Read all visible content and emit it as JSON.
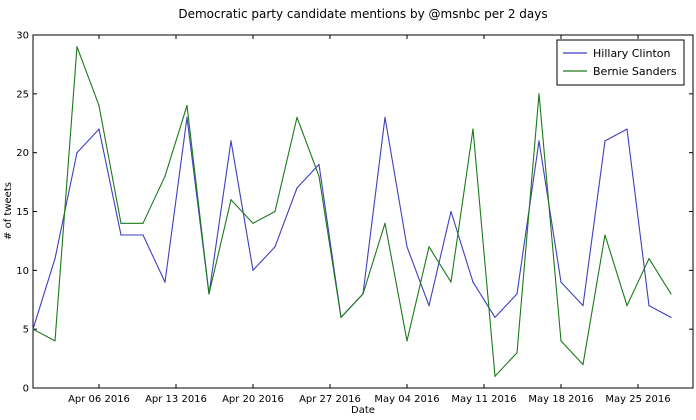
{
  "chart_data": {
    "type": "line",
    "title": "Democratic party candidate mentions by @msnbc per 2 days",
    "xlabel": "Date",
    "ylabel": "# of tweets",
    "ylim": [
      0,
      30
    ],
    "yticks": [
      0,
      5,
      10,
      15,
      20,
      25,
      30
    ],
    "xlim": [
      "2016-03-31",
      "2016-05-30"
    ],
    "xticks": [
      {
        "date": "2016-04-06",
        "label": "Apr 06 2016"
      },
      {
        "date": "2016-04-13",
        "label": "Apr 13 2016"
      },
      {
        "date": "2016-04-20",
        "label": "Apr 20 2016"
      },
      {
        "date": "2016-04-27",
        "label": "Apr 27 2016"
      },
      {
        "date": "2016-05-04",
        "label": "May 04 2016"
      },
      {
        "date": "2016-05-11",
        "label": "May 11 2016"
      },
      {
        "date": "2016-05-18",
        "label": "May 18 2016"
      },
      {
        "date": "2016-05-25",
        "label": "May 25 2016"
      }
    ],
    "grid": false,
    "legend_position": "top-right",
    "x": [
      "2016-03-31",
      "2016-04-02",
      "2016-04-04",
      "2016-04-06",
      "2016-04-08",
      "2016-04-10",
      "2016-04-12",
      "2016-04-14",
      "2016-04-16",
      "2016-04-18",
      "2016-04-20",
      "2016-04-22",
      "2016-04-24",
      "2016-04-26",
      "2016-04-28",
      "2016-04-30",
      "2016-05-02",
      "2016-05-04",
      "2016-05-06",
      "2016-05-08",
      "2016-05-10",
      "2016-05-12",
      "2016-05-14",
      "2016-05-16",
      "2016-05-18",
      "2016-05-20",
      "2016-05-22",
      "2016-05-24",
      "2016-05-26",
      "2016-05-28",
      "2016-05-30"
    ],
    "series": [
      {
        "name": "Hillary Clinton",
        "color": "#3f3fbf",
        "values": [
          5,
          11,
          20,
          22,
          13,
          13,
          9,
          23,
          8,
          21,
          10,
          12,
          17,
          19,
          6,
          8,
          23,
          12,
          7,
          15,
          9,
          6,
          8,
          21,
          9,
          7,
          21,
          22,
          7,
          6,
          null
        ]
      },
      {
        "name": "Bernie Sanders",
        "color": "#1a7a1a",
        "values": [
          5,
          4,
          29,
          24,
          14,
          14,
          18,
          24,
          8,
          16,
          14,
          15,
          23,
          18,
          6,
          8,
          14,
          4,
          12,
          9,
          22,
          1,
          3,
          25,
          4,
          2,
          13,
          7,
          11,
          8,
          null
        ]
      }
    ]
  }
}
